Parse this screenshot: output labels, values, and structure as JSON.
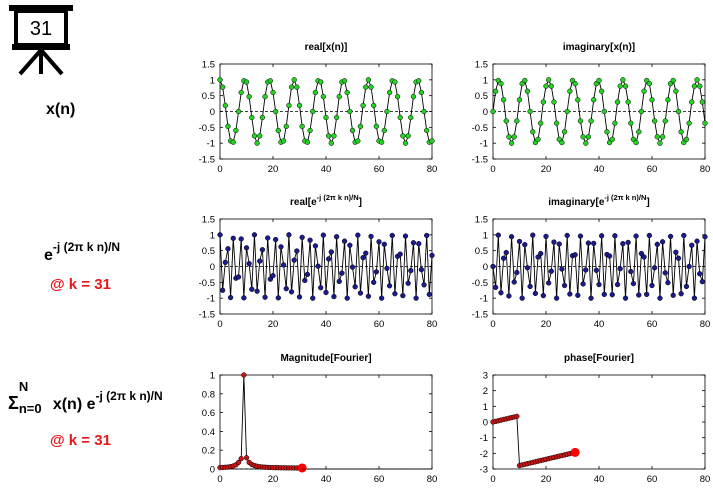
{
  "frame_number": "31",
  "row_labels": {
    "xn": "x(n)",
    "basis_base": "e",
    "basis_exp": "-j (2π k n)/N",
    "at_k_1": "@ k = 31",
    "sum_symbol": "Σ",
    "sum_upper": "N",
    "sum_lower": "n=0",
    "sum_body": "x(n) e",
    "sum_exp": "-j (2π k n)/N",
    "at_k_2": "@ k = 31"
  },
  "colors": {
    "green_marker": "#25d125",
    "blue_marker": "#1b1b8c",
    "red_marker": "#c81414",
    "highlight": "#ff0000",
    "label_red": "#e8151b"
  },
  "chart_data": [
    {
      "id": "real_x",
      "type": "line",
      "title": "real[x(n)]",
      "xlim": [
        0,
        80
      ],
      "ylim": [
        -1.5,
        1.5
      ],
      "xticks": [
        0,
        20,
        40,
        60,
        80
      ],
      "yticks": [
        -1.5,
        -1,
        -0.5,
        0,
        0.5,
        1,
        1.5
      ],
      "ytick_labels": [
        "-1.5",
        "-1",
        "-0.5",
        "0",
        "0.5",
        "1",
        "1.5"
      ],
      "zero_line": "dashed",
      "x": [
        0,
        1,
        2,
        3,
        4,
        5,
        6,
        7,
        8,
        9,
        10,
        11,
        12,
        13,
        14,
        15,
        16,
        17,
        18,
        19,
        20,
        21,
        22,
        23,
        24,
        25,
        26,
        27,
        28,
        29,
        30,
        31,
        32,
        33,
        34,
        35,
        36,
        37,
        38,
        39,
        40,
        41,
        42,
        43,
        44,
        45,
        46,
        47,
        48,
        49,
        50,
        51,
        52,
        53,
        54,
        55,
        56,
        57,
        58,
        59,
        60,
        61,
        62,
        63,
        64,
        65,
        66,
        67,
        68,
        69,
        70,
        71,
        72,
        73,
        74,
        75,
        76,
        77,
        78,
        79,
        80
      ],
      "y": [
        1,
        0.77,
        0.19,
        -0.47,
        -0.93,
        -0.97,
        -0.6,
        0,
        0.6,
        0.97,
        0.93,
        0.47,
        -0.19,
        -0.77,
        -1,
        -0.77,
        -0.19,
        0.47,
        0.93,
        0.97,
        0.6,
        0,
        -0.6,
        -0.97,
        -0.93,
        -0.47,
        0.19,
        0.77,
        1,
        0.77,
        0.19,
        -0.47,
        -0.93,
        -0.97,
        -0.6,
        0,
        0.6,
        0.97,
        0.93,
        0.47,
        -0.19,
        -0.77,
        -1,
        -0.77,
        -0.19,
        0.47,
        0.93,
        0.97,
        0.6,
        0,
        -0.6,
        -0.97,
        -0.93,
        -0.47,
        0.19,
        0.77,
        1,
        0.77,
        0.19,
        -0.47,
        -0.93,
        -0.97,
        -0.6,
        0,
        0.6,
        0.97,
        0.93,
        0.47,
        -0.19,
        -0.77,
        -1,
        -0.77,
        -0.19,
        0.47,
        0.93,
        0.97,
        0.6,
        0,
        -0.6,
        -0.97,
        -0.93
      ],
      "color": "#25d125",
      "highlight_last": false
    },
    {
      "id": "imag_x",
      "type": "line",
      "title": "imaginary[x(n)]",
      "xlim": [
        0,
        80
      ],
      "ylim": [
        -1.5,
        1.5
      ],
      "xticks": [
        0,
        20,
        40,
        60,
        80
      ],
      "yticks": [
        -1.5,
        -1,
        -0.5,
        0,
        0.5,
        1,
        1.5
      ],
      "ytick_labels": [
        "-1.5",
        "-1",
        "-0.5",
        "0",
        "0.5",
        "1",
        "1.5"
      ],
      "zero_line": "dashed",
      "x": [
        0,
        1,
        2,
        3,
        4,
        5,
        6,
        7,
        8,
        9,
        10,
        11,
        12,
        13,
        14,
        15,
        16,
        17,
        18,
        19,
        20,
        21,
        22,
        23,
        24,
        25,
        26,
        27,
        28,
        29,
        30,
        31,
        32,
        33,
        34,
        35,
        36,
        37,
        38,
        39,
        40,
        41,
        42,
        43,
        44,
        45,
        46,
        47,
        48,
        49,
        50,
        51,
        52,
        53,
        54,
        55,
        56,
        57,
        58,
        59,
        60,
        61,
        62,
        63,
        64,
        65,
        66,
        67,
        68,
        69,
        70,
        71,
        72,
        73,
        74,
        75,
        76,
        77,
        78,
        79,
        80
      ],
      "y": [
        0,
        0.64,
        0.98,
        0.88,
        0.37,
        -0.3,
        -0.8,
        -1,
        -0.8,
        -0.3,
        0.37,
        0.88,
        0.98,
        0.64,
        0,
        -0.64,
        -0.98,
        -0.88,
        -0.37,
        0.3,
        0.8,
        1,
        0.8,
        0.3,
        -0.37,
        -0.88,
        -0.98,
        -0.64,
        0,
        0.64,
        0.98,
        0.88,
        0.37,
        -0.3,
        -0.8,
        -1,
        -0.8,
        -0.3,
        0.37,
        0.88,
        0.98,
        0.64,
        0,
        -0.64,
        -0.98,
        -0.88,
        -0.37,
        0.3,
        0.8,
        1,
        0.8,
        0.3,
        -0.37,
        -0.88,
        -0.98,
        -0.64,
        0,
        0.64,
        0.98,
        0.88,
        0.37,
        -0.3,
        -0.8,
        -1,
        -0.8,
        -0.3,
        0.37,
        0.88,
        0.98,
        0.64,
        0,
        -0.64,
        -0.98,
        -0.88,
        -0.37,
        0.3,
        0.8,
        1,
        0.8,
        0.3,
        -0.37
      ],
      "color": "#25d125",
      "highlight_last": false
    },
    {
      "id": "real_e",
      "type": "line",
      "title": "real[e^-j (2π k n)/N]",
      "title_parts": {
        "base": "real[e",
        "sup": "-j (2π k n)/N",
        "end": "]"
      },
      "xlim": [
        0,
        80
      ],
      "ylim": [
        -1.5,
        1.5
      ],
      "xticks": [
        0,
        20,
        40,
        60,
        80
      ],
      "yticks": [
        -1.5,
        -1,
        -0.5,
        0,
        0.5,
        1,
        1.5
      ],
      "ytick_labels": [
        "-1.5",
        "-1",
        "-0.5",
        "0",
        "0.5",
        "1",
        "1.5"
      ],
      "zero_line": "dashed",
      "x": [
        0,
        1,
        2,
        3,
        4,
        5,
        6,
        7,
        8,
        9,
        10,
        11,
        12,
        13,
        14,
        15,
        16,
        17,
        18,
        19,
        20,
        21,
        22,
        23,
        24,
        25,
        26,
        27,
        28,
        29,
        30,
        31,
        32,
        33,
        34,
        35,
        36,
        37,
        38,
        39,
        40,
        41,
        42,
        43,
        44,
        45,
        46,
        47,
        48,
        49,
        50,
        51,
        52,
        53,
        54,
        55,
        56,
        57,
        58,
        59,
        60,
        61,
        62,
        63,
        64,
        65,
        66,
        67,
        68,
        69,
        70,
        71,
        72,
        73,
        74,
        75,
        76,
        77,
        78,
        79,
        80
      ],
      "y": [
        1,
        -0.75,
        0.13,
        0.56,
        -0.98,
        0.89,
        -0.37,
        -0.33,
        0.87,
        -0.99,
        0.59,
        0.09,
        -0.72,
        1,
        -0.78,
        0.17,
        0.53,
        -0.97,
        0.9,
        -0.4,
        -0.29,
        0.85,
        -0.99,
        0.62,
        0.05,
        -0.7,
        1,
        -0.8,
        0.2,
        0.49,
        -0.96,
        0.92,
        -0.44,
        -0.25,
        0.83,
        -1,
        0.65,
        0.01,
        -0.67,
        0.99,
        -0.82,
        0.24,
        0.46,
        -0.95,
        0.94,
        -0.47,
        -0.21,
        0.8,
        -1,
        0.67,
        -0.02,
        -0.64,
        0.99,
        -0.84,
        0.28,
        0.42,
        -0.94,
        0.95,
        -0.5,
        -0.17,
        0.78,
        -1,
        0.7,
        -0.06,
        -0.61,
        0.98,
        -0.86,
        0.32,
        0.39,
        -0.92,
        0.96,
        -0.53,
        -0.13,
        0.75,
        -1,
        0.72,
        -0.1,
        -0.58,
        0.98,
        -0.88,
        0.35
      ],
      "color": "#1b1b8c",
      "highlight_last": false
    },
    {
      "id": "imag_e",
      "type": "line",
      "title": "imaginary[e^-j (2π k n)/N]",
      "title_parts": {
        "base": "imaginary[e",
        "sup": "-j (2π k n)/N",
        "end": "]"
      },
      "xlim": [
        0,
        80
      ],
      "ylim": [
        -1.5,
        1.5
      ],
      "xticks": [
        0,
        20,
        40,
        60,
        80
      ],
      "yticks": [
        -1.5,
        -1,
        -0.5,
        0,
        0.5,
        1,
        1.5
      ],
      "ytick_labels": [
        "-1.5",
        "-1",
        "-0.5",
        "0",
        "0.5",
        "1",
        "1.5"
      ],
      "zero_line": "dashed",
      "x": [
        0,
        1,
        2,
        3,
        4,
        5,
        6,
        7,
        8,
        9,
        10,
        11,
        12,
        13,
        14,
        15,
        16,
        17,
        18,
        19,
        20,
        21,
        22,
        23,
        24,
        25,
        26,
        27,
        28,
        29,
        30,
        31,
        32,
        33,
        34,
        35,
        36,
        37,
        38,
        39,
        40,
        41,
        42,
        43,
        44,
        45,
        46,
        47,
        48,
        49,
        50,
        51,
        52,
        53,
        54,
        55,
        56,
        57,
        58,
        59,
        60,
        61,
        62,
        63,
        64,
        65,
        66,
        67,
        68,
        69,
        70,
        71,
        72,
        73,
        74,
        75,
        76,
        77,
        78,
        79,
        80
      ],
      "y": [
        0,
        -0.66,
        0.99,
        -0.83,
        0.26,
        0.44,
        -0.93,
        0.94,
        -0.49,
        -0.19,
        0.79,
        -1,
        0.69,
        -0.04,
        -0.63,
        0.99,
        -0.85,
        0.3,
        0.41,
        -0.92,
        0.95,
        -0.52,
        -0.15,
        0.77,
        -1,
        0.71,
        -0.08,
        -0.6,
        0.98,
        -0.87,
        0.34,
        0.37,
        -0.91,
        0.96,
        -0.55,
        -0.11,
        0.74,
        -1,
        0.73,
        -0.12,
        -0.57,
        0.97,
        -0.88,
        0.38,
        0.33,
        -0.89,
        0.97,
        -0.57,
        -0.07,
        0.72,
        -1,
        0.76,
        -0.16,
        -0.54,
        0.96,
        -0.9,
        0.41,
        0.3,
        -0.88,
        0.98,
        -0.6,
        -0.04,
        0.7,
        -1,
        0.78,
        -0.2,
        -0.51,
        0.95,
        -0.91,
        0.45,
        0.26,
        -0.86,
        0.98,
        -0.63,
        0,
        0.67,
        -1,
        0.8,
        -0.23,
        -0.48,
        0.94
      ],
      "color": "#1b1b8c",
      "highlight_last": false
    },
    {
      "id": "magnitude",
      "type": "line",
      "title": "Magnitude[Fourier]",
      "xlim": [
        0,
        80
      ],
      "ylim": [
        0,
        1
      ],
      "xticks": [
        0,
        20,
        40,
        60,
        80
      ],
      "yticks": [
        0,
        0.2,
        0.4,
        0.6,
        0.8,
        1
      ],
      "ytick_labels": [
        "0",
        "0.2",
        "0.4",
        "0.6",
        "0.8",
        "1"
      ],
      "zero_line": "dashed",
      "x": [
        0,
        1,
        2,
        3,
        4,
        5,
        6,
        7,
        8,
        9,
        10,
        11,
        12,
        13,
        14,
        15,
        16,
        17,
        18,
        19,
        20,
        21,
        22,
        23,
        24,
        25,
        26,
        27,
        28,
        29,
        30,
        31
      ],
      "y": [
        0.015,
        0.016,
        0.018,
        0.02,
        0.025,
        0.032,
        0.045,
        0.07,
        0.11,
        1,
        0.12,
        0.07,
        0.048,
        0.036,
        0.029,
        0.024,
        0.021,
        0.019,
        0.017,
        0.016,
        0.015,
        0.014,
        0.014,
        0.013,
        0.013,
        0.012,
        0.012,
        0.012,
        0.011,
        0.011,
        0.011,
        0.011
      ],
      "color": "#c81414",
      "highlight_last": true
    },
    {
      "id": "phase",
      "type": "line",
      "title": "phase[Fourier]",
      "xlim": [
        0,
        80
      ],
      "ylim": [
        -3,
        3
      ],
      "xticks": [
        0,
        20,
        40,
        60,
        80
      ],
      "yticks": [
        -3,
        -2,
        -1,
        0,
        1,
        2,
        3
      ],
      "ytick_labels": [
        "-3",
        "-2",
        "-1",
        "0",
        "1",
        "2",
        "3"
      ],
      "zero_line": "none",
      "x": [
        0,
        1,
        2,
        3,
        4,
        5,
        6,
        7,
        8,
        9,
        10,
        11,
        12,
        13,
        14,
        15,
        16,
        17,
        18,
        19,
        20,
        21,
        22,
        23,
        24,
        25,
        26,
        27,
        28,
        29,
        30,
        31
      ],
      "y": [
        0,
        0.04,
        0.08,
        0.12,
        0.16,
        0.2,
        0.24,
        0.28,
        0.32,
        0.36,
        -2.78,
        -2.74,
        -2.7,
        -2.66,
        -2.62,
        -2.58,
        -2.54,
        -2.5,
        -2.46,
        -2.42,
        -2.38,
        -2.34,
        -2.3,
        -2.26,
        -2.22,
        -2.18,
        -2.14,
        -2.1,
        -2.06,
        -2.02,
        -1.98,
        -1.94
      ],
      "color": "#c81414",
      "highlight_last": true
    }
  ]
}
